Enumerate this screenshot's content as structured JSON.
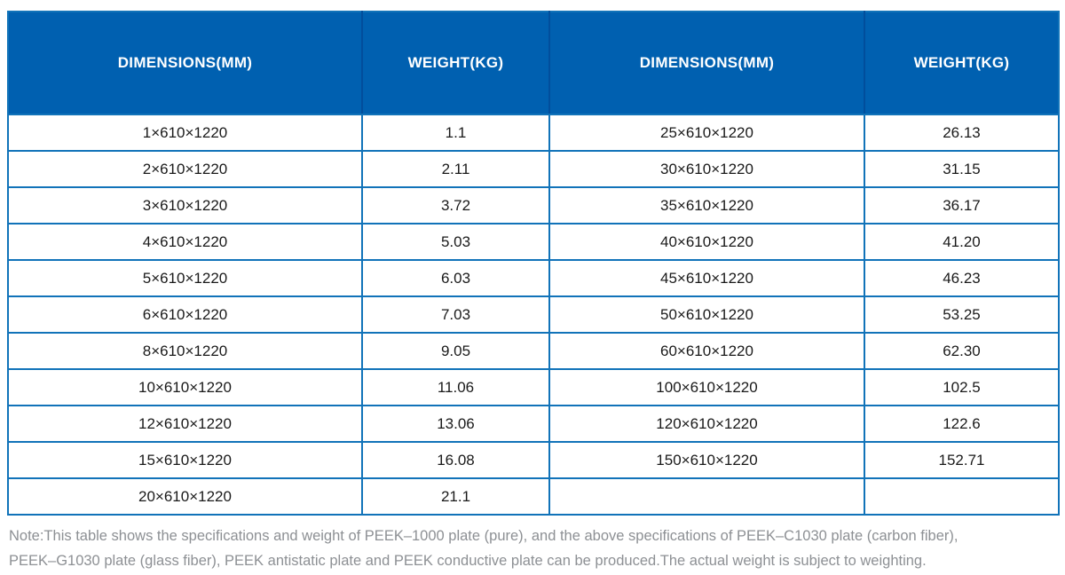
{
  "colors": {
    "header_bg": "#0060b0",
    "header_divider": "#014e9c",
    "grid": "#1173b9",
    "body_text": "#1a1a1a",
    "note_text": "#8d9094"
  },
  "table": {
    "headers": [
      "DIMENSIONS(MM)",
      "WEIGHT(KG)",
      "DIMENSIONS(MM)",
      "WEIGHT(KG)"
    ],
    "rows": [
      [
        "1×610×1220",
        "1.1",
        "25×610×1220",
        "26.13"
      ],
      [
        "2×610×1220",
        "2.11",
        "30×610×1220",
        "31.15"
      ],
      [
        "3×610×1220",
        "3.72",
        "35×610×1220",
        "36.17"
      ],
      [
        "4×610×1220",
        "5.03",
        "40×610×1220",
        "41.20"
      ],
      [
        "5×610×1220",
        "6.03",
        "45×610×1220",
        "46.23"
      ],
      [
        "6×610×1220",
        "7.03",
        "50×610×1220",
        "53.25"
      ],
      [
        "8×610×1220",
        "9.05",
        "60×610×1220",
        "62.30"
      ],
      [
        "10×610×1220",
        "11.06",
        "100×610×1220",
        "102.5"
      ],
      [
        "12×610×1220",
        "13.06",
        "120×610×1220",
        "122.6"
      ],
      [
        "15×610×1220",
        "16.08",
        "150×610×1220",
        "152.71"
      ],
      [
        "20×610×1220",
        "21.1",
        "",
        ""
      ]
    ]
  },
  "note": {
    "line1": "Note:This table shows the specifications and weight of PEEK–1000 plate (pure), and the above specifications of PEEK–C1030 plate (carbon fiber),",
    "line2": "PEEK–G1030 plate (glass fiber), PEEK antistatic plate and PEEK conductive plate can be produced.The actual weight is subject to weighting."
  }
}
